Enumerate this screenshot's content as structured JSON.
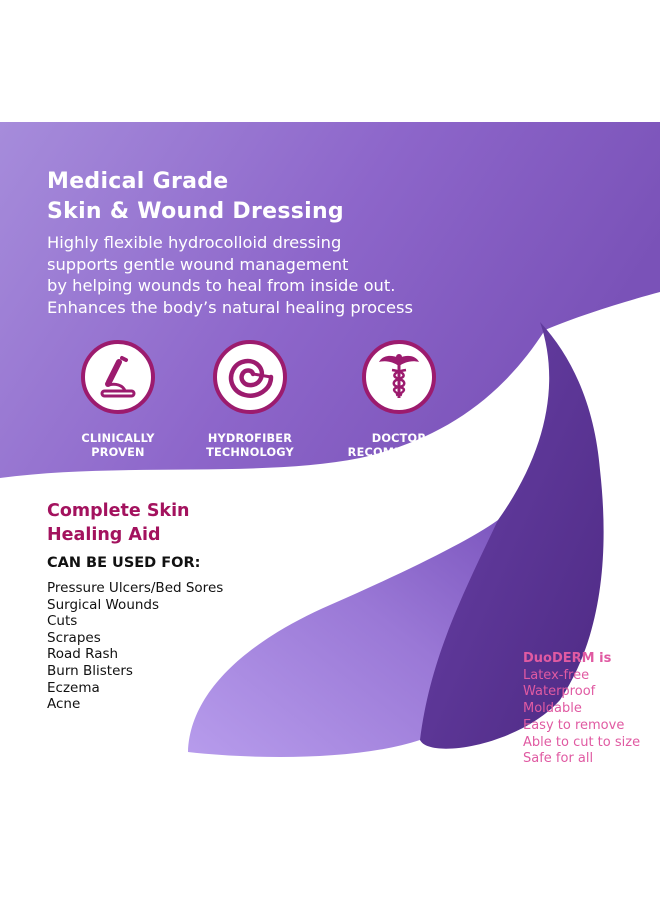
{
  "headline": {
    "lines": [
      "Medical Grade",
      "Skin & Wound Dressing"
    ]
  },
  "intro": {
    "lines": [
      "Highly flexible hydrocolloid dressing",
      "supports gentle wound management",
      "by helping wounds to heal from inside out.",
      "Enhances the body’s natural healing process"
    ]
  },
  "badges": [
    {
      "icon": "microscope-icon",
      "lines": [
        "CLINICALLY",
        "PROVEN"
      ]
    },
    {
      "icon": "spiral-icon",
      "lines": [
        "HYDROFIBER",
        "TECHNOLOGY"
      ]
    },
    {
      "icon": "caduceus-icon",
      "lines": [
        "DOCTOR",
        "RECOMMENDED"
      ]
    }
  ],
  "subhead": {
    "lines": [
      "Complete Skin",
      "Healing Aid"
    ]
  },
  "uses": {
    "title": "CAN BE USED FOR:",
    "items": [
      "Pressure Ulcers/Bed Sores",
      "Surgical Wounds",
      "Cuts",
      "Scrapes",
      "Road Rash",
      "Burn Blisters",
      "Eczema",
      "Acne"
    ]
  },
  "duoderm": {
    "title": "DuoDERM is",
    "items": [
      "Latex-free",
      "Waterproof",
      "Moldable",
      "Easy to remove",
      "Able to cut to size",
      "Safe for all"
    ]
  },
  "colors": {
    "purple_light": "#a48ad8",
    "purple_mid": "#8a64c8",
    "purple_dark": "#5a3490",
    "badge_ring": "#9c1b6e",
    "subhead": "#a3125e",
    "duoderm_text": "#e05aa2"
  }
}
